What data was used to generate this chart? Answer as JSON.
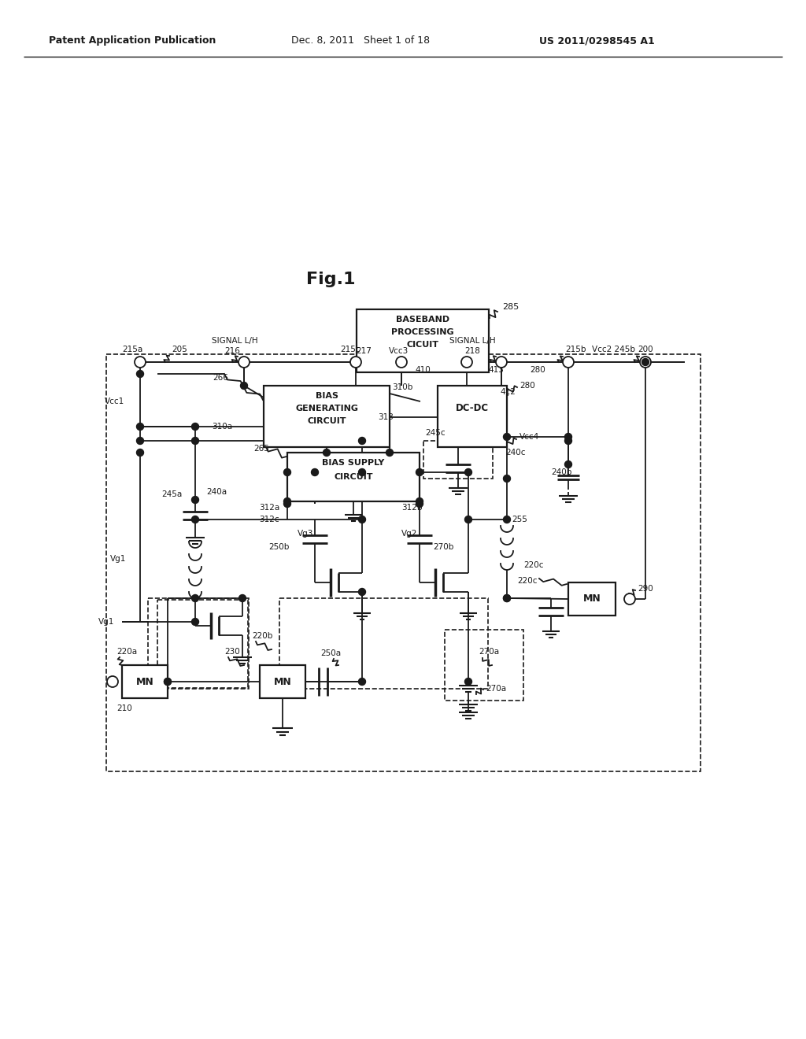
{
  "bg_color": "#ffffff",
  "lc": "#1a1a1a",
  "header_left": "Patent Application Publication",
  "header_mid": "Dec. 8, 2011   Sheet 1 of 18",
  "header_right": "US 2011/0298545 A1",
  "fig_label": "Fig.1"
}
